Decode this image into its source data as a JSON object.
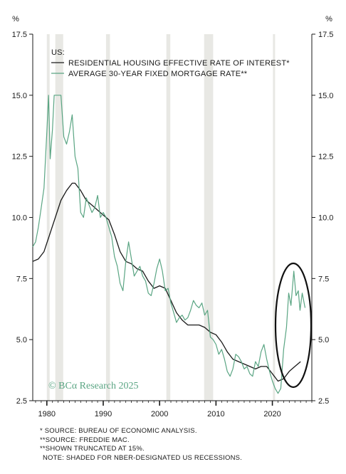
{
  "chart_data": {
    "type": "line",
    "y_unit_left": "%",
    "y_unit_right": "%",
    "ylim": [
      2.5,
      17.5
    ],
    "yticks": [
      "2.5",
      "5.0",
      "7.5",
      "10.0",
      "12.5",
      "15.0",
      "17.5"
    ],
    "xlim": [
      1977.5,
      2027
    ],
    "xticks": [
      "1980",
      "1990",
      "2000",
      "2010",
      "2020"
    ],
    "legend_title": "US:",
    "recessions": [
      [
        1980.0,
        1980.5
      ],
      [
        1981.5,
        1982.9
      ],
      [
        1990.5,
        1991.2
      ],
      [
        2001.2,
        2001.9
      ],
      [
        2007.9,
        2009.5
      ],
      [
        2020.1,
        2020.4
      ]
    ],
    "series": [
      {
        "name": "RESIDENTIAL HOUSING EFFECTIVE RATE OF INTEREST*",
        "color": "#1a1a1a",
        "points": [
          [
            1977.5,
            8.2
          ],
          [
            1978.5,
            8.3
          ],
          [
            1979.5,
            8.6
          ],
          [
            1980.5,
            9.3
          ],
          [
            1981.5,
            10.0
          ],
          [
            1982.5,
            10.7
          ],
          [
            1983.5,
            11.1
          ],
          [
            1984.5,
            11.4
          ],
          [
            1985,
            11.4
          ],
          [
            1986,
            11.1
          ],
          [
            1987,
            10.7
          ],
          [
            1988,
            10.5
          ],
          [
            1989,
            10.3
          ],
          [
            1990,
            10.1
          ],
          [
            1991,
            9.9
          ],
          [
            1992,
            9.3
          ],
          [
            1993,
            8.6
          ],
          [
            1994,
            8.2
          ],
          [
            1995,
            8.1
          ],
          [
            1996,
            7.9
          ],
          [
            1997,
            7.8
          ],
          [
            1998,
            7.4
          ],
          [
            1999,
            7.1
          ],
          [
            2000,
            7.2
          ],
          [
            2001,
            7.1
          ],
          [
            2002,
            6.6
          ],
          [
            2003,
            6.1
          ],
          [
            2004,
            5.8
          ],
          [
            2005,
            5.6
          ],
          [
            2006,
            5.6
          ],
          [
            2007,
            5.6
          ],
          [
            2008,
            5.5
          ],
          [
            2009,
            5.3
          ],
          [
            2010,
            5.2
          ],
          [
            2011,
            4.9
          ],
          [
            2012,
            4.5
          ],
          [
            2013,
            4.2
          ],
          [
            2014,
            4.1
          ],
          [
            2015,
            4.0
          ],
          [
            2016,
            3.9
          ],
          [
            2017,
            3.8
          ],
          [
            2018,
            3.9
          ],
          [
            2019,
            3.9
          ],
          [
            2020,
            3.6
          ],
          [
            2021,
            3.3
          ],
          [
            2022,
            3.4
          ],
          [
            2023,
            3.7
          ],
          [
            2024,
            3.9
          ],
          [
            2025,
            4.1
          ]
        ]
      },
      {
        "name": "AVERAGE 30-YEAR FIXED MORTGAGE RATE**",
        "color": "#5aa583",
        "points": [
          [
            1977.5,
            8.8
          ],
          [
            1978,
            9.0
          ],
          [
            1978.5,
            9.6
          ],
          [
            1979,
            10.4
          ],
          [
            1979.5,
            11.2
          ],
          [
            1980,
            13.5
          ],
          [
            1980.3,
            15.0
          ],
          [
            1980.6,
            12.4
          ],
          [
            1981,
            13.6
          ],
          [
            1981.3,
            15.0
          ],
          [
            1982,
            15.0
          ],
          [
            1982.5,
            15.0
          ],
          [
            1983,
            13.3
          ],
          [
            1983.5,
            13.0
          ],
          [
            1984,
            13.5
          ],
          [
            1984.5,
            14.2
          ],
          [
            1985,
            12.5
          ],
          [
            1985.5,
            12.0
          ],
          [
            1986,
            10.2
          ],
          [
            1986.5,
            10.0
          ],
          [
            1987,
            10.8
          ],
          [
            1987.5,
            10.5
          ],
          [
            1988,
            10.2
          ],
          [
            1988.5,
            10.4
          ],
          [
            1989,
            10.9
          ],
          [
            1989.5,
            10.0
          ],
          [
            1990,
            10.2
          ],
          [
            1990.5,
            10.0
          ],
          [
            1991,
            9.6
          ],
          [
            1991.5,
            9.2
          ],
          [
            1992,
            8.4
          ],
          [
            1992.5,
            8.0
          ],
          [
            1993,
            7.3
          ],
          [
            1993.5,
            7.0
          ],
          [
            1994,
            8.2
          ],
          [
            1994.5,
            9.0
          ],
          [
            1995,
            8.3
          ],
          [
            1995.5,
            7.6
          ],
          [
            1996,
            7.8
          ],
          [
            1996.5,
            8.0
          ],
          [
            1997,
            7.6
          ],
          [
            1997.5,
            7.4
          ],
          [
            1998,
            6.9
          ],
          [
            1998.5,
            6.8
          ],
          [
            1999,
            7.3
          ],
          [
            1999.5,
            7.9
          ],
          [
            2000,
            8.3
          ],
          [
            2000.5,
            7.8
          ],
          [
            2001,
            7.0
          ],
          [
            2001.5,
            7.1
          ],
          [
            2002,
            6.5
          ],
          [
            2002.5,
            6.1
          ],
          [
            2003,
            5.7
          ],
          [
            2003.5,
            5.9
          ],
          [
            2004,
            6.0
          ],
          [
            2004.5,
            5.8
          ],
          [
            2005,
            5.9
          ],
          [
            2005.5,
            6.2
          ],
          [
            2006,
            6.6
          ],
          [
            2006.5,
            6.4
          ],
          [
            2007,
            6.3
          ],
          [
            2007.5,
            6.5
          ],
          [
            2008,
            6.0
          ],
          [
            2008.5,
            6.2
          ],
          [
            2009,
            5.1
          ],
          [
            2009.5,
            5.0
          ],
          [
            2010,
            4.8
          ],
          [
            2010.5,
            4.4
          ],
          [
            2011,
            4.6
          ],
          [
            2011.5,
            4.2
          ],
          [
            2012,
            3.7
          ],
          [
            2012.5,
            3.5
          ],
          [
            2013,
            3.8
          ],
          [
            2013.5,
            4.4
          ],
          [
            2014,
            4.3
          ],
          [
            2014.5,
            4.1
          ],
          [
            2015,
            3.8
          ],
          [
            2015.5,
            3.9
          ],
          [
            2016,
            3.6
          ],
          [
            2016.5,
            3.5
          ],
          [
            2017,
            4.1
          ],
          [
            2017.5,
            3.9
          ],
          [
            2018,
            4.5
          ],
          [
            2018.5,
            4.8
          ],
          [
            2019,
            4.2
          ],
          [
            2019.5,
            3.7
          ],
          [
            2020,
            3.3
          ],
          [
            2020.5,
            3.0
          ],
          [
            2021,
            2.8
          ],
          [
            2021.5,
            3.0
          ],
          [
            2022,
            4.6
          ],
          [
            2022.5,
            5.5
          ],
          [
            2022.9,
            6.9
          ],
          [
            2023.3,
            6.4
          ],
          [
            2023.8,
            7.8
          ],
          [
            2024.2,
            6.8
          ],
          [
            2024.6,
            7.0
          ],
          [
            2024.9,
            6.2
          ],
          [
            2025.3,
            6.9
          ],
          [
            2025.8,
            6.3
          ]
        ]
      }
    ],
    "notes": [
      "* SOURCE: BUREAU OF ECONOMIC ANALYSIS.",
      "**SOURCE: FREDDIE MAC.",
      "**SHOWN TRUNCATED AT 15%.",
      "NOTE: SHADED FOR NBER-DESIGNATED US RECESSIONS."
    ],
    "watermark": "© BCα Research 2025"
  }
}
